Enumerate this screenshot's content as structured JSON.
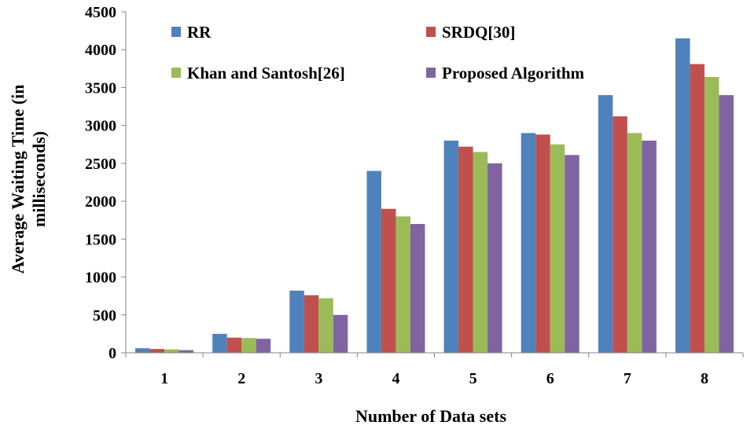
{
  "chart_data": {
    "type": "bar",
    "title": "",
    "xlabel": "Number of Data sets",
    "ylabel_lines": [
      "Average Waiting Time (in",
      "milliseconds)"
    ],
    "categories": [
      "1",
      "2",
      "3",
      "4",
      "5",
      "6",
      "7",
      "8"
    ],
    "ylim": [
      0,
      4500
    ],
    "yticks": [
      0,
      500,
      1000,
      1500,
      2000,
      2500,
      3000,
      3500,
      4000,
      4500
    ],
    "grid": false,
    "legend_position": "top",
    "series": [
      {
        "name": "RR",
        "color": "#4f81bd",
        "values": [
          60,
          250,
          820,
          2400,
          2800,
          2900,
          3400,
          4150
        ]
      },
      {
        "name": "SRDQ[30]",
        "color": "#c0504d",
        "values": [
          50,
          200,
          760,
          1900,
          2720,
          2880,
          3120,
          3810
        ]
      },
      {
        "name": "Khan and Santosh[26]",
        "color": "#9bbb59",
        "values": [
          45,
          195,
          720,
          1800,
          2650,
          2750,
          2900,
          3640
        ]
      },
      {
        "name": "Proposed Algorithm",
        "color": "#8064a2",
        "values": [
          35,
          185,
          500,
          1700,
          2500,
          2610,
          2800,
          3400
        ]
      }
    ]
  }
}
